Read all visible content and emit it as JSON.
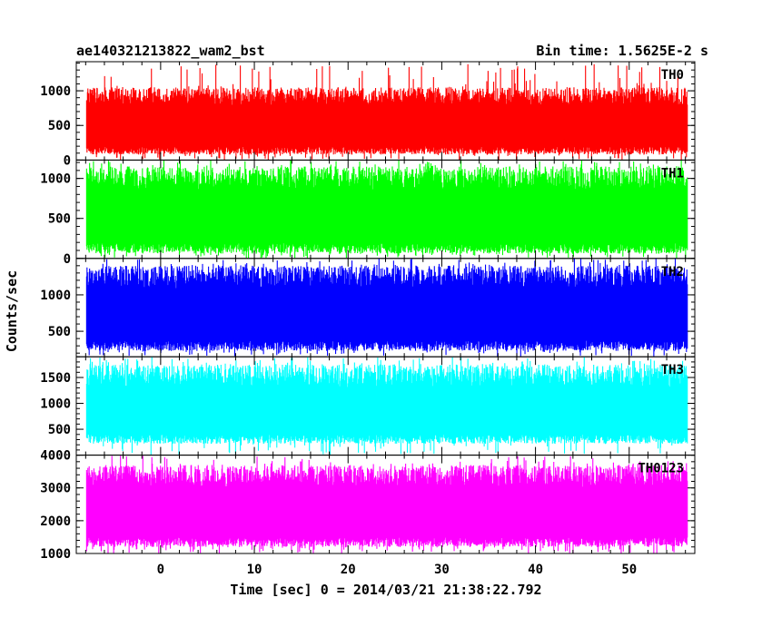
{
  "chart_data": {
    "type": "line",
    "title": "ae140321213822_wam2_bst",
    "subtitle": "Bin time: 1.5625E-2 s",
    "xlabel": "Time [sec] 0 = 2014/03/21 21:38:22.792",
    "ylabel": "Counts/sec",
    "xlim": [
      -9,
      57
    ],
    "data_x_range": [
      -7.9,
      56.2
    ],
    "x_ticks": [
      0,
      10,
      20,
      30,
      40,
      50
    ],
    "x_tick_labels": [
      "0",
      "10",
      "20",
      "30",
      "40",
      "50"
    ],
    "grid": false,
    "panels": [
      {
        "name": "TH0",
        "color": "#ff0000",
        "ylim": [
          0,
          1420
        ],
        "y_ticks": [
          0,
          500,
          1000
        ],
        "y_tick_labels": [
          "0",
          "500",
          "1000"
        ],
        "typical_low": 80,
        "typical_high": 1050,
        "approx_max": 1400
      },
      {
        "name": "TH1",
        "color": "#00ff00",
        "ylim": [
          0,
          1230
        ],
        "y_ticks": [
          0,
          500,
          1000
        ],
        "y_tick_labels": [
          "0",
          "500",
          "1000"
        ],
        "typical_low": 60,
        "typical_high": 1150,
        "approx_max": 1230
      },
      {
        "name": "TH2",
        "color": "#0000ff",
        "ylim": [
          150,
          1500
        ],
        "y_ticks": [
          500,
          1000
        ],
        "y_tick_labels": [
          "500",
          "1000"
        ],
        "typical_low": 230,
        "typical_high": 1400,
        "approx_max": 1500
      },
      {
        "name": "TH3",
        "color": "#00ffff",
        "ylim": [
          0,
          1900
        ],
        "y_ticks": [
          500,
          1000,
          1500
        ],
        "y_tick_labels": [
          "500",
          "1000",
          "1500"
        ],
        "typical_low": 220,
        "typical_high": 1750,
        "approx_max": 1900
      },
      {
        "name": "TH0123",
        "color": "#ff00ff",
        "ylim": [
          1000,
          4000
        ],
        "y_ticks": [
          1000,
          2000,
          3000,
          4000
        ],
        "y_tick_labels": [
          "1000",
          "2000",
          "3000",
          "4000"
        ],
        "typical_low": 1200,
        "typical_high": 3700,
        "approx_max": 4000
      }
    ]
  }
}
